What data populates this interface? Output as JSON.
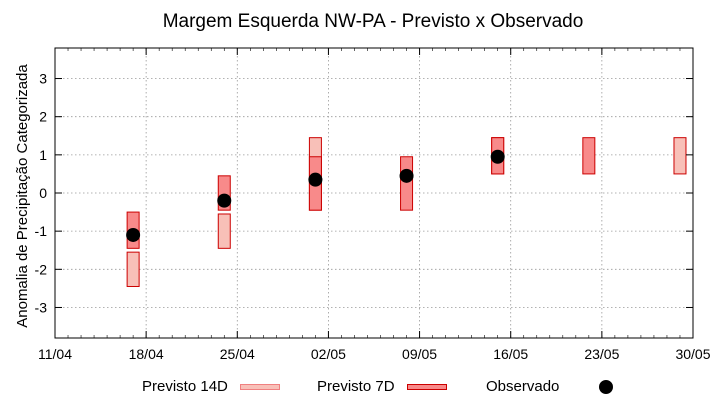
{
  "chart_data": {
    "type": "range-bar",
    "title": "Margem Esquerda NW-PA - Previsto x Observado",
    "xlabel": "",
    "ylabel": "Anomalia de Precipitação Categorizada",
    "xlim": [
      "11/04",
      "30/05"
    ],
    "ylim": [
      -3.8,
      3.8
    ],
    "yticks": [
      -3,
      -2,
      -1,
      0,
      1,
      2,
      3
    ],
    "xticks": [
      "11/04",
      "18/04",
      "25/04",
      "02/05",
      "09/05",
      "16/05",
      "23/05",
      "30/05"
    ],
    "grid": true,
    "legend_position": "bottom",
    "series": [
      {
        "name": "Previsto 14D",
        "color": "#f8c0b8",
        "points": [
          {
            "x": "17/04",
            "low": -2.45,
            "high": -1.55
          },
          {
            "x": "24/04",
            "low": -1.45,
            "high": -0.55
          },
          {
            "x": "01/05",
            "low": -0.45,
            "high": 1.45
          },
          {
            "x": "15/05",
            "low": 0.5,
            "high": 1.45
          },
          {
            "x": "29/05",
            "low": 0.5,
            "high": 1.45
          }
        ]
      },
      {
        "name": "Previsto 7D",
        "color": "#f88a8a",
        "points": [
          {
            "x": "17/04",
            "low": -1.45,
            "high": -0.5
          },
          {
            "x": "24/04",
            "low": -0.45,
            "high": 0.45
          },
          {
            "x": "01/05",
            "low": -0.45,
            "high": 0.95
          },
          {
            "x": "08/05",
            "low": -0.45,
            "high": 0.95
          },
          {
            "x": "15/05",
            "low": 0.5,
            "high": 1.45
          },
          {
            "x": "22/05",
            "low": 0.5,
            "high": 1.45
          }
        ]
      },
      {
        "name": "Observado",
        "color": "#000000",
        "points": [
          {
            "x": "17/04",
            "y": -1.1
          },
          {
            "x": "24/04",
            "y": -0.2
          },
          {
            "x": "01/05",
            "y": 0.35
          },
          {
            "x": "08/05",
            "y": 0.45
          },
          {
            "x": "15/05",
            "y": 0.95
          }
        ]
      }
    ]
  }
}
